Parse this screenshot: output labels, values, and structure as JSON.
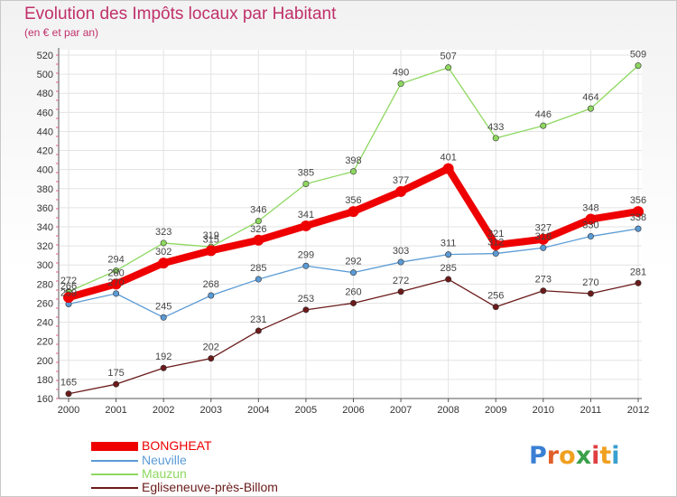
{
  "title": "Evolution des Impôts locaux par Habitant",
  "subtitle": "(en € et par an)",
  "logo": {
    "letters": [
      "P",
      "r",
      "o",
      "x",
      "i",
      "t",
      "i"
    ],
    "colors": [
      "#3a7fd4",
      "#e0602a",
      "#f0a020",
      "#3aa04a",
      "#e04040",
      "#f0a020",
      "#3aa0d0"
    ]
  },
  "chart_data": {
    "type": "line",
    "x": [
      2000,
      2001,
      2002,
      2003,
      2004,
      2005,
      2006,
      2007,
      2008,
      2009,
      2010,
      2011,
      2012
    ],
    "ylim": [
      160,
      520
    ],
    "yticks": [
      160,
      180,
      200,
      220,
      240,
      260,
      280,
      300,
      320,
      340,
      360,
      380,
      400,
      420,
      440,
      460,
      480,
      500,
      520
    ],
    "grid": true,
    "legend_position": "bottom-left",
    "series": [
      {
        "name": "BONGHEAT",
        "color": "#ee0000",
        "values": [
          266,
          280,
          302,
          315,
          326,
          341,
          356,
          377,
          401,
          321,
          327,
          348,
          356
        ]
      },
      {
        "name": "Neuville",
        "color": "#5b9bd5",
        "values": [
          259,
          270,
          245,
          268,
          285,
          299,
          292,
          303,
          311,
          312,
          318,
          330,
          338
        ]
      },
      {
        "name": "Mauzun",
        "color": "#8ed860",
        "values": [
          272,
          294,
          323,
          319,
          346,
          385,
          398,
          490,
          507,
          433,
          446,
          464,
          509
        ]
      },
      {
        "name": "Egliseneuve-près-Billom",
        "color": "#6b1a1a",
        "values": [
          165,
          175,
          192,
          202,
          231,
          253,
          260,
          272,
          285,
          256,
          273,
          270,
          281
        ]
      }
    ]
  }
}
